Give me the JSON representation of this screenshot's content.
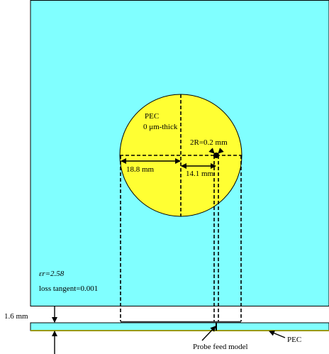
{
  "patch": {
    "material": "PEC",
    "thickness": "0 μm-thick",
    "feed_diameter": "2R=0.2 mm",
    "diameter": "18.8 mm",
    "feed_offset": "14.1 mm"
  },
  "substrate": {
    "permittivity": "εr=2.58",
    "loss_tangent": "loss tangent=0.001",
    "height": "1.6 mm"
  },
  "labels": {
    "probe": "Probe feed model",
    "ground": "PEC"
  }
}
